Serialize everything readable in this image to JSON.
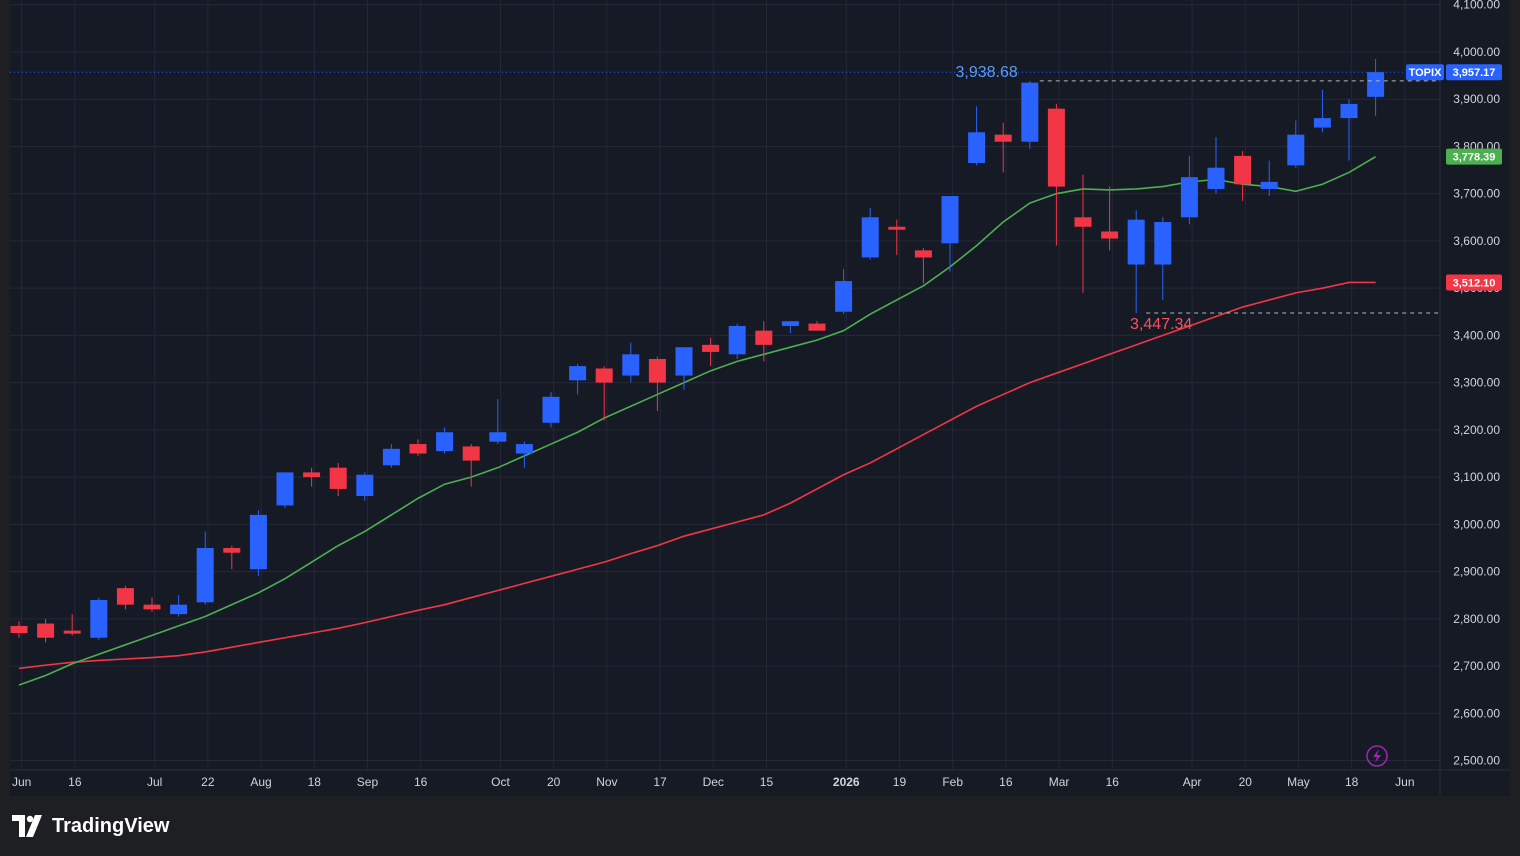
{
  "brand": {
    "name": "TradingView",
    "logo_icon": "tradingview-logo-icon"
  },
  "quick_action_icon": "lightning-icon",
  "colors": {
    "background": "#161a25",
    "grid": "#242838",
    "axis_text": "#d1d4dc",
    "up": "#2962ff",
    "down": "#f23645",
    "ma_short": "#4caf50",
    "ma_long": "#f23645",
    "price_tag": "#2962ff",
    "ma_short_tag": "#4caf50",
    "ma_long_tag": "#f23645",
    "high_label": "#5b9cf6",
    "low_label": "#f7525f",
    "dotted_line": "#2962ff"
  },
  "chart_data": {
    "type": "candlestick",
    "symbol": "TOPIX",
    "interval": "weekly",
    "ylim": [
      2480,
      4110
    ],
    "y_ticks": [
      2500,
      2600,
      2700,
      2800,
      2900,
      3000,
      3100,
      3200,
      3300,
      3400,
      3500,
      3600,
      3700,
      3800,
      3900,
      4000,
      4100
    ],
    "y_tick_labels": [
      "2,500.00",
      "2,600.00",
      "2,700.00",
      "2,800.00",
      "2,900.00",
      "3,000.00",
      "3,100.00",
      "3,200.00",
      "3,300.00",
      "3,400.00",
      "3,500.00",
      "3,600.00",
      "3,700.00",
      "3,800.00",
      "3,900.00",
      "4,000.00",
      "4,100.00"
    ],
    "x_labels": [
      {
        "i": 0.1,
        "label": "Jun",
        "bold": false
      },
      {
        "i": 2.1,
        "label": "16",
        "bold": false
      },
      {
        "i": 5.1,
        "label": "Jul",
        "bold": false
      },
      {
        "i": 7.1,
        "label": "22",
        "bold": false
      },
      {
        "i": 9.1,
        "label": "Aug",
        "bold": false
      },
      {
        "i": 11.1,
        "label": "18",
        "bold": false
      },
      {
        "i": 13.1,
        "label": "Sep",
        "bold": false
      },
      {
        "i": 15.1,
        "label": "16",
        "bold": false
      },
      {
        "i": 18.1,
        "label": "Oct",
        "bold": false
      },
      {
        "i": 20.1,
        "label": "20",
        "bold": false
      },
      {
        "i": 22.1,
        "label": "Nov",
        "bold": false
      },
      {
        "i": 24.1,
        "label": "17",
        "bold": false
      },
      {
        "i": 26.1,
        "label": "Dec",
        "bold": false
      },
      {
        "i": 28.1,
        "label": "15",
        "bold": false
      },
      {
        "i": 31.1,
        "label": "2026",
        "bold": true
      },
      {
        "i": 33.1,
        "label": "19",
        "bold": false
      },
      {
        "i": 35.1,
        "label": "Feb",
        "bold": false
      },
      {
        "i": 37.1,
        "label": "16",
        "bold": false
      },
      {
        "i": 39.1,
        "label": "Mar",
        "bold": false
      },
      {
        "i": 41.1,
        "label": "16",
        "bold": false
      },
      {
        "i": 44.1,
        "label": "Apr",
        "bold": false
      },
      {
        "i": 46.1,
        "label": "20",
        "bold": false
      },
      {
        "i": 48.1,
        "label": "May",
        "bold": false
      },
      {
        "i": 50.1,
        "label": "18",
        "bold": false
      },
      {
        "i": 52.1,
        "label": "Jun",
        "bold": false
      }
    ],
    "candles": [
      {
        "o": 2785,
        "h": 2795,
        "l": 2760,
        "c": 2770
      },
      {
        "o": 2790,
        "h": 2800,
        "l": 2750,
        "c": 2760
      },
      {
        "o": 2775,
        "h": 2810,
        "l": 2765,
        "c": 2770
      },
      {
        "o": 2760,
        "h": 2845,
        "l": 2755,
        "c": 2840
      },
      {
        "o": 2865,
        "h": 2870,
        "l": 2820,
        "c": 2830
      },
      {
        "o": 2830,
        "h": 2845,
        "l": 2815,
        "c": 2820
      },
      {
        "o": 2810,
        "h": 2850,
        "l": 2805,
        "c": 2830
      },
      {
        "o": 2835,
        "h": 2985,
        "l": 2830,
        "c": 2950
      },
      {
        "o": 2950,
        "h": 2955,
        "l": 2905,
        "c": 2940
      },
      {
        "o": 2905,
        "h": 3030,
        "l": 2890,
        "c": 3020
      },
      {
        "o": 3040,
        "h": 3110,
        "l": 3035,
        "c": 3110
      },
      {
        "o": 3110,
        "h": 3120,
        "l": 3080,
        "c": 3100
      },
      {
        "o": 3120,
        "h": 3130,
        "l": 3060,
        "c": 3075
      },
      {
        "o": 3060,
        "h": 3110,
        "l": 3050,
        "c": 3105
      },
      {
        "o": 3125,
        "h": 3170,
        "l": 3120,
        "c": 3160
      },
      {
        "o": 3170,
        "h": 3180,
        "l": 3145,
        "c": 3150
      },
      {
        "o": 3155,
        "h": 3205,
        "l": 3150,
        "c": 3195
      },
      {
        "o": 3165,
        "h": 3170,
        "l": 3080,
        "c": 3135
      },
      {
        "o": 3175,
        "h": 3265,
        "l": 3170,
        "c": 3195
      },
      {
        "o": 3150,
        "h": 3175,
        "l": 3120,
        "c": 3170
      },
      {
        "o": 3215,
        "h": 3280,
        "l": 3205,
        "c": 3270
      },
      {
        "o": 3305,
        "h": 3340,
        "l": 3275,
        "c": 3335
      },
      {
        "o": 3330,
        "h": 3335,
        "l": 3220,
        "c": 3300
      },
      {
        "o": 3315,
        "h": 3385,
        "l": 3300,
        "c": 3360
      },
      {
        "o": 3350,
        "h": 3355,
        "l": 3240,
        "c": 3300
      },
      {
        "o": 3315,
        "h": 3375,
        "l": 3285,
        "c": 3375
      },
      {
        "o": 3380,
        "h": 3395,
        "l": 3335,
        "c": 3365
      },
      {
        "o": 3360,
        "h": 3425,
        "l": 3350,
        "c": 3420
      },
      {
        "o": 3410,
        "h": 3430,
        "l": 3345,
        "c": 3380
      },
      {
        "o": 3420,
        "h": 3430,
        "l": 3405,
        "c": 3430
      },
      {
        "o": 3425,
        "h": 3430,
        "l": 3410,
        "c": 3410
      },
      {
        "o": 3450,
        "h": 3540,
        "l": 3445,
        "c": 3515
      },
      {
        "o": 3565,
        "h": 3670,
        "l": 3560,
        "c": 3650
      },
      {
        "o": 3630,
        "h": 3645,
        "l": 3570,
        "c": 3625
      },
      {
        "o": 3580,
        "h": 3585,
        "l": 3510,
        "c": 3565
      },
      {
        "o": 3595,
        "h": 3695,
        "l": 3535,
        "c": 3695
      },
      {
        "o": 3765,
        "h": 3885,
        "l": 3760,
        "c": 3830
      },
      {
        "o": 3825,
        "h": 3850,
        "l": 3745,
        "c": 3810
      },
      {
        "o": 3810,
        "h": 3938.68,
        "l": 3795,
        "c": 3935
      },
      {
        "o": 3880,
        "h": 3890,
        "l": 3590,
        "c": 3715
      },
      {
        "o": 3650,
        "h": 3740,
        "l": 3490,
        "c": 3630
      },
      {
        "o": 3620,
        "h": 3715,
        "l": 3580,
        "c": 3605
      },
      {
        "o": 3550,
        "h": 3665,
        "l": 3447.34,
        "c": 3645
      },
      {
        "o": 3550,
        "h": 3650,
        "l": 3475,
        "c": 3640
      },
      {
        "o": 3650,
        "h": 3780,
        "l": 3635,
        "c": 3735
      },
      {
        "o": 3710,
        "h": 3820,
        "l": 3700,
        "c": 3755
      },
      {
        "o": 3780,
        "h": 3790,
        "l": 3685,
        "c": 3720
      },
      {
        "o": 3710,
        "h": 3770,
        "l": 3695,
        "c": 3725
      },
      {
        "o": 3760,
        "h": 3855,
        "l": 3755,
        "c": 3825
      },
      {
        "o": 3840,
        "h": 3920,
        "l": 3830,
        "c": 3860
      },
      {
        "o": 3860,
        "h": 3900,
        "l": 3770,
        "c": 3890
      },
      {
        "o": 3905,
        "h": 3985,
        "l": 3865,
        "c": 3957.17
      }
    ],
    "ma_short": [
      2660,
      2680,
      2705,
      2725,
      2745,
      2765,
      2785,
      2805,
      2830,
      2855,
      2885,
      2920,
      2955,
      2985,
      3020,
      3055,
      3085,
      3100,
      3120,
      3145,
      3170,
      3195,
      3225,
      3250,
      3275,
      3300,
      3325,
      3345,
      3360,
      3375,
      3390,
      3410,
      3445,
      3475,
      3505,
      3545,
      3590,
      3640,
      3680,
      3700,
      3710,
      3708,
      3710,
      3715,
      3725,
      3730,
      3720,
      3715,
      3705,
      3720,
      3745,
      3778.39
    ],
    "ma_long": [
      2695,
      2702,
      2708,
      2712,
      2715,
      2718,
      2722,
      2730,
      2740,
      2750,
      2760,
      2770,
      2780,
      2792,
      2805,
      2818,
      2830,
      2845,
      2860,
      2875,
      2890,
      2905,
      2920,
      2938,
      2955,
      2975,
      2990,
      3005,
      3020,
      3045,
      3075,
      3105,
      3130,
      3160,
      3190,
      3220,
      3250,
      3275,
      3300,
      3320,
      3340,
      3360,
      3380,
      3400,
      3420,
      3440,
      3460,
      3475,
      3490,
      3500,
      3512.1,
      3512.1
    ],
    "current_price": {
      "symbol": "TOPIX",
      "value": 3957.17,
      "label": "3,957.17"
    },
    "ma_short_last": {
      "value": 3778.39,
      "label": "3,778.39"
    },
    "ma_long_last": {
      "value": 3512.1,
      "label": "3,512.10"
    },
    "high_marker": {
      "i": 38,
      "value": 3938.68,
      "label": "3,938.68"
    },
    "low_marker": {
      "i": 42,
      "value": 3447.34,
      "label": "3,447.34"
    }
  }
}
